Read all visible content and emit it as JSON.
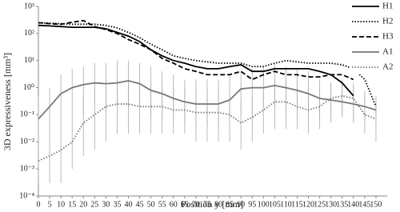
{
  "chart_data": {
    "type": "line",
    "x_label": "Position y [mm]",
    "y_label": "3D expressiveness [mm³]",
    "log_y": true,
    "legend": "upper right",
    "xlim": [
      0,
      155
    ],
    "ylim": [
      0.0001,
      1000
    ],
    "xticks": [
      0,
      5,
      10,
      15,
      20,
      25,
      30,
      35,
      40,
      45,
      50,
      55,
      60,
      65,
      70,
      75,
      80,
      85,
      90,
      95,
      100,
      105,
      110,
      115,
      120,
      125,
      130,
      135,
      140,
      145,
      150
    ],
    "yticks": [
      {
        "value": 0.0001,
        "label": "10⁻⁴"
      },
      {
        "value": 0.001,
        "label": "10⁻³"
      },
      {
        "value": 0.01,
        "label": "10⁻²"
      },
      {
        "value": 0.1,
        "label": "10⁻¹"
      },
      {
        "value": 1,
        "label": "10⁰"
      },
      {
        "value": 10,
        "label": "10¹"
      },
      {
        "value": 100,
        "label": "10²"
      },
      {
        "value": 1000,
        "label": "10³"
      }
    ],
    "x": [
      0,
      5,
      10,
      15,
      20,
      25,
      30,
      35,
      40,
      45,
      50,
      55,
      60,
      65,
      70,
      75,
      80,
      85,
      90,
      95,
      100,
      105,
      110,
      115,
      120,
      125,
      130,
      135,
      140,
      145,
      150
    ],
    "series": [
      {
        "name": "H1",
        "color": "#000000",
        "line_style": "solid",
        "values": [
          200,
          190,
          180,
          170,
          170,
          170,
          150,
          110,
          80,
          50,
          25,
          15,
          10,
          8,
          6,
          5,
          5,
          6,
          7,
          4,
          4,
          5,
          5,
          5,
          5,
          4,
          3,
          1.5,
          0.5,
          null,
          null
        ]
      },
      {
        "name": "H2",
        "color": "#000000",
        "line_style": "dotted",
        "values": [
          250,
          240,
          230,
          220,
          220,
          220,
          200,
          160,
          110,
          70,
          40,
          25,
          15,
          12,
          10,
          9,
          8,
          8,
          8,
          6,
          6,
          8,
          10,
          9,
          8,
          8,
          8,
          7,
          5,
          2,
          0.2
        ]
      },
      {
        "name": "H3",
        "color": "#000000",
        "line_style": "dashed",
        "values": [
          250,
          230,
          220,
          260,
          300,
          180,
          140,
          100,
          60,
          40,
          25,
          12,
          8,
          5,
          4,
          3,
          3,
          3,
          4,
          2,
          3,
          4,
          3,
          3,
          2.5,
          2.5,
          3,
          3,
          2,
          null,
          null
        ]
      },
      {
        "name": "A1",
        "color": "#777777",
        "line_style": "solid",
        "values": [
          0.07,
          0.2,
          0.6,
          1.0,
          1.3,
          1.5,
          1.4,
          1.5,
          1.8,
          1.4,
          0.8,
          0.6,
          0.4,
          0.3,
          0.25,
          0.25,
          0.25,
          0.35,
          0.9,
          1.0,
          1.0,
          1.2,
          1.0,
          0.8,
          0.6,
          0.4,
          0.35,
          0.3,
          0.25,
          0.2,
          0.15
        ],
        "lower": [
          0.02,
          0.03,
          0.05,
          0.1,
          0.1,
          0.2,
          0.1,
          0.2,
          0.2,
          0.2,
          0.1,
          0.08,
          0.05,
          0.04,
          0.04,
          0.04,
          0.04,
          0.05,
          0.1,
          0.1,
          0.2,
          0.2,
          0.1,
          0.1,
          0.1,
          0.08,
          0.08,
          0.08,
          0.06,
          0.05,
          0.05
        ],
        "upper": [
          0.5,
          1,
          3,
          5,
          6,
          8,
          8,
          10,
          10,
          8,
          6,
          4,
          3,
          2,
          2,
          2,
          2,
          3,
          4,
          5,
          6,
          8,
          6,
          5,
          4,
          2,
          1.5,
          1.5,
          1,
          0.8,
          0.5
        ]
      },
      {
        "name": "A2",
        "color": "#777777",
        "line_style": "dotted",
        "values": [
          0.002,
          0.003,
          0.005,
          0.01,
          0.05,
          0.1,
          0.2,
          0.25,
          0.25,
          0.2,
          0.2,
          0.2,
          0.15,
          0.15,
          0.12,
          0.12,
          0.12,
          0.1,
          0.05,
          0.08,
          0.15,
          0.3,
          0.3,
          0.2,
          0.15,
          0.2,
          0.4,
          0.5,
          0.4,
          0.1,
          0.07
        ],
        "lower": [
          0.0003,
          0.0003,
          0.0003,
          0.001,
          0.003,
          0.005,
          0.01,
          0.02,
          0.02,
          0.02,
          0.02,
          0.02,
          0.02,
          0.02,
          0.01,
          0.01,
          0.01,
          0.01,
          0.005,
          0.01,
          0.02,
          0.03,
          0.03,
          0.03,
          0.02,
          0.03,
          0.05,
          0.1,
          0.05,
          0.02,
          0.01
        ],
        "upper": [
          0.02,
          0.03,
          0.05,
          0.1,
          0.5,
          1,
          2,
          2,
          2,
          1.5,
          1.5,
          1.2,
          1,
          1,
          0.8,
          0.8,
          0.8,
          0.6,
          0.3,
          0.5,
          1,
          2,
          2,
          1.5,
          1,
          1,
          1.5,
          2,
          1.5,
          0.5,
          0.3
        ]
      }
    ]
  }
}
